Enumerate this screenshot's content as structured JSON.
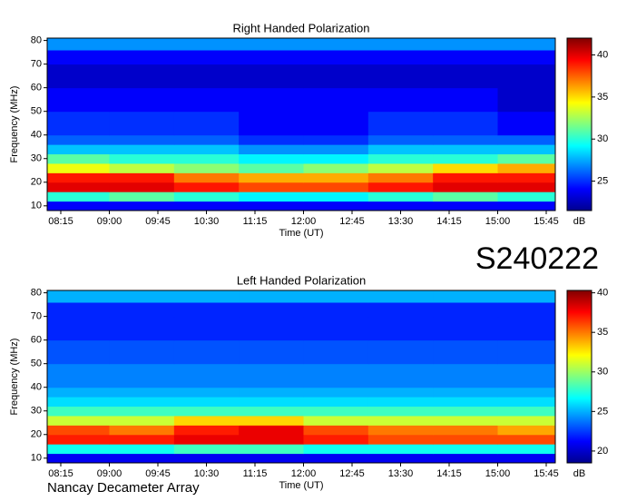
{
  "station": "S240222",
  "footer": "Nancay Decameter Array",
  "chart_data": [
    {
      "type": "heatmap",
      "title": "Right Handed Polarization",
      "xlabel": "Time (UT)",
      "ylabel": "Frequency (MHz)",
      "colormap": "jet",
      "xlim": [
        8.04,
        15.89
      ],
      "xticks": [
        {
          "value": 8.25,
          "label": "08:15"
        },
        {
          "value": 9,
          "label": "09:00"
        },
        {
          "value": 9.75,
          "label": "09:45"
        },
        {
          "value": 10.5,
          "label": "10:30"
        },
        {
          "value": 11.25,
          "label": "11:15"
        },
        {
          "value": 12,
          "label": "12:00"
        },
        {
          "value": 12.75,
          "label": "12:45"
        },
        {
          "value": 13.5,
          "label": "13:30"
        },
        {
          "value": 14.25,
          "label": "14:15"
        },
        {
          "value": 15,
          "label": "15:00"
        },
        {
          "value": 15.75,
          "label": "15:45"
        }
      ],
      "ylim": [
        8,
        81
      ],
      "yticks": [
        10,
        20,
        30,
        40,
        50,
        60,
        70,
        80
      ],
      "xbins": [
        8.04,
        9,
        10,
        11,
        12,
        13,
        14,
        15,
        15.89
      ],
      "ybins": [
        8,
        12,
        16,
        20,
        24,
        28,
        32,
        36,
        40,
        50,
        60,
        70,
        76,
        81
      ],
      "z": [
        [
          24,
          24,
          24,
          24,
          24,
          24,
          24,
          24
        ],
        [
          30,
          31,
          30,
          29,
          29,
          30,
          31,
          30
        ],
        [
          40,
          40,
          39,
          38,
          38,
          39,
          40,
          40
        ],
        [
          39,
          39,
          37,
          36,
          36,
          37,
          39,
          39
        ],
        [
          34,
          33,
          32,
          31,
          32,
          33,
          35,
          36
        ],
        [
          31,
          30,
          30,
          29,
          29,
          30,
          30,
          31
        ],
        [
          28,
          28,
          28,
          27,
          27,
          28,
          28,
          28
        ],
        [
          26,
          26,
          26,
          25,
          25,
          26,
          26,
          26
        ],
        [
          25,
          25,
          25,
          24,
          24,
          25,
          25,
          24
        ],
        [
          24,
          24,
          24,
          24,
          24,
          24,
          24,
          23
        ],
        [
          23,
          23,
          23,
          23,
          23,
          23,
          23,
          23
        ],
        [
          24,
          24,
          24,
          24,
          24,
          24,
          24,
          24
        ],
        [
          27,
          27,
          27,
          27,
          27,
          27,
          27,
          27
        ]
      ],
      "colorbar": {
        "label": "dB",
        "lim": [
          21.5,
          42
        ],
        "ticks": [
          25,
          30,
          35,
          40
        ]
      }
    },
    {
      "type": "heatmap",
      "title": "Left Handed Polarization",
      "xlabel": "Time (UT)",
      "ylabel": "Frequency (MHz)",
      "colormap": "jet",
      "xlim": [
        8.04,
        15.89
      ],
      "xticks": [
        {
          "value": 8.25,
          "label": "08:15"
        },
        {
          "value": 9,
          "label": "09:00"
        },
        {
          "value": 9.75,
          "label": "09:45"
        },
        {
          "value": 10.5,
          "label": "10:30"
        },
        {
          "value": 11.25,
          "label": "11:15"
        },
        {
          "value": 12,
          "label": "12:00"
        },
        {
          "value": 12.75,
          "label": "12:45"
        },
        {
          "value": 13.5,
          "label": "13:30"
        },
        {
          "value": 14.25,
          "label": "14:15"
        },
        {
          "value": 15,
          "label": "15:00"
        },
        {
          "value": 15.75,
          "label": "15:45"
        }
      ],
      "ylim": [
        8,
        81
      ],
      "yticks": [
        10,
        20,
        30,
        40,
        50,
        60,
        70,
        80
      ],
      "xbins": [
        8.04,
        9,
        10,
        11,
        12,
        13,
        14,
        15,
        15.89
      ],
      "ybins": [
        8,
        12,
        16,
        20,
        24,
        28,
        32,
        36,
        40,
        50,
        60,
        70,
        76,
        81
      ],
      "z": [
        [
          21,
          21,
          21,
          21,
          21,
          21,
          21,
          21
        ],
        [
          27,
          27,
          28,
          28,
          27,
          27,
          27,
          27
        ],
        [
          37,
          37,
          38,
          38,
          37,
          36,
          36,
          36
        ],
        [
          36,
          35,
          37,
          38,
          36,
          35,
          35,
          34
        ],
        [
          31,
          31,
          33,
          33,
          31,
          31,
          31,
          31
        ],
        [
          28,
          28,
          28,
          28,
          28,
          28,
          28,
          28
        ],
        [
          26,
          26,
          26,
          26,
          26,
          26,
          26,
          26
        ],
        [
          25,
          25,
          25,
          25,
          25,
          25,
          25,
          25
        ],
        [
          24,
          24,
          24,
          24,
          24,
          24,
          24,
          24
        ],
        [
          23,
          23,
          23,
          23,
          23,
          23,
          23,
          23
        ],
        [
          22,
          22,
          22,
          22,
          22,
          22,
          22,
          22
        ],
        [
          22,
          22,
          22,
          22,
          22,
          22,
          22,
          22
        ],
        [
          25,
          25,
          25,
          25,
          25,
          25,
          25,
          25
        ]
      ],
      "colorbar": {
        "label": "dB",
        "lim": [
          18.5,
          40.3
        ],
        "ticks": [
          20,
          25,
          30,
          35,
          40
        ]
      }
    }
  ]
}
